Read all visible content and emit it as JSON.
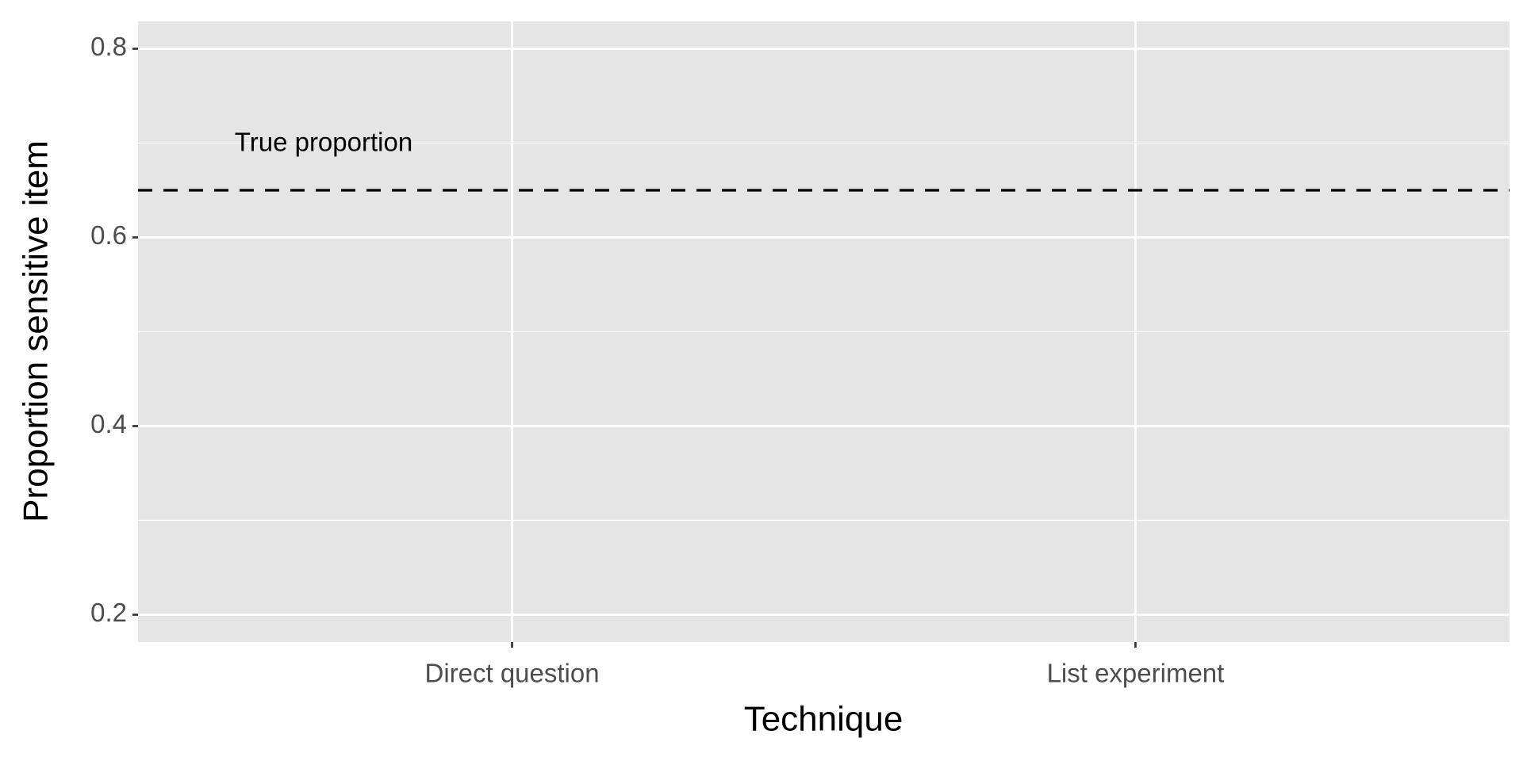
{
  "chart_data": {
    "type": "point",
    "x_label": "Technique",
    "y_label": "Proportion sensitive item",
    "categories": [
      "Direct question",
      "List experiment"
    ],
    "ylim": [
      0.171,
      0.829
    ],
    "yticks": [
      0.2,
      0.4,
      0.6,
      0.8
    ],
    "grid": true,
    "minor_grid": true,
    "reference_line": {
      "value": 0.65,
      "label": "True proportion",
      "style": "dashed",
      "color": "#000000"
    },
    "panel_color": "#e5e5e5"
  }
}
